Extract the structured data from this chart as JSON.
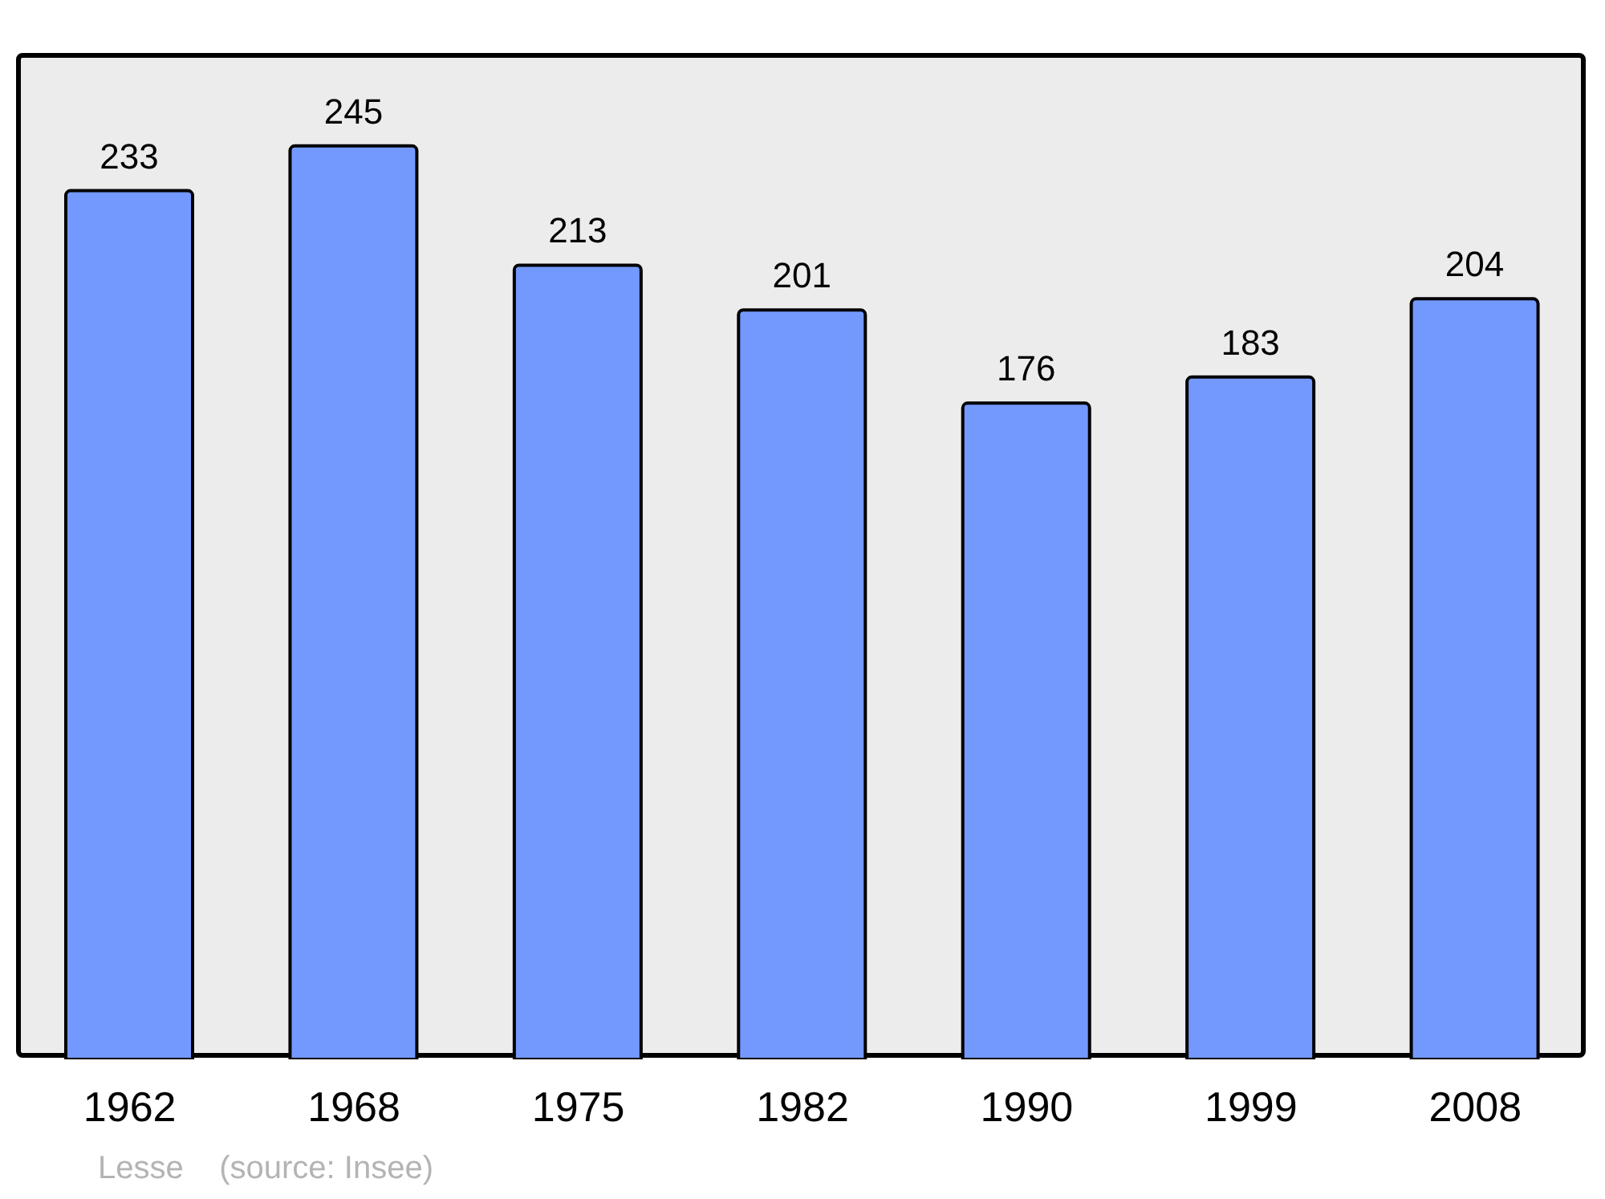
{
  "chart_data": {
    "type": "bar",
    "categories": [
      "1962",
      "1968",
      "1975",
      "1982",
      "1990",
      "1999",
      "2008"
    ],
    "values": [
      233,
      245,
      213,
      201,
      176,
      183,
      204
    ],
    "color": "#7399ff",
    "data_labels": true,
    "annotations": [
      "Lesse    (source: Insee)"
    ]
  }
}
